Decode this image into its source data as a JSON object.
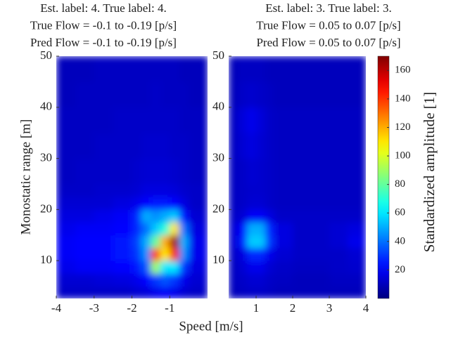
{
  "chart_data": {
    "type": "heatmap",
    "xlabel": "Speed [m/s]",
    "ylabel": "Monostatic range [m]",
    "colormap": "jet",
    "clim": [
      0,
      170
    ],
    "colorbar_label": "Standardized amplitude [1]",
    "colorbar_ticks": [
      20,
      40,
      60,
      80,
      100,
      120,
      140,
      160
    ],
    "panels": [
      {
        "title_lines": [
          "Est. label: 4. True label: 4.",
          "True Flow = -0.1 to -0.19 [p/s]",
          "Pred Flow = -0.1 to -0.19 [p/s]"
        ],
        "xlim": [
          -4,
          0
        ],
        "ylim": [
          2.6,
          50
        ],
        "xticks": [
          -4,
          -3,
          -2,
          -1
        ],
        "yticks": [
          10,
          20,
          30,
          40,
          50
        ],
        "x_edges": [
          -4,
          -3.5,
          -3,
          -2.5,
          -2,
          -1.75,
          -1.5,
          -1.25,
          -1,
          -0.75,
          -0.5,
          0
        ],
        "y_edges": [
          2.6,
          5,
          7.5,
          10,
          12.5,
          15,
          17.5,
          20,
          22.5,
          25,
          30,
          35,
          40,
          45,
          50
        ],
        "values": [
          [
            12,
            12,
            12,
            12,
            14,
            15,
            18,
            20,
            18,
            14,
            12
          ],
          [
            14,
            14,
            15,
            16,
            18,
            22,
            30,
            35,
            30,
            18,
            14
          ],
          [
            18,
            20,
            20,
            22,
            25,
            35,
            90,
            60,
            60,
            30,
            16
          ],
          [
            20,
            22,
            22,
            25,
            30,
            45,
            140,
            110,
            150,
            45,
            18
          ],
          [
            20,
            22,
            22,
            25,
            32,
            50,
            80,
            120,
            165,
            50,
            18
          ],
          [
            18,
            20,
            20,
            22,
            28,
            40,
            55,
            70,
            110,
            40,
            16
          ],
          [
            16,
            16,
            18,
            20,
            28,
            50,
            45,
            50,
            55,
            25,
            14
          ],
          [
            14,
            14,
            14,
            16,
            18,
            22,
            25,
            25,
            22,
            16,
            12
          ],
          [
            12,
            12,
            13,
            13,
            14,
            16,
            16,
            16,
            15,
            13,
            12
          ],
          [
            11,
            12,
            12,
            12,
            13,
            14,
            14,
            14,
            13,
            12,
            11
          ],
          [
            11,
            11,
            12,
            12,
            12,
            13,
            13,
            13,
            12,
            12,
            11
          ],
          [
            11,
            11,
            11,
            12,
            12,
            12,
            12,
            12,
            12,
            11,
            11
          ],
          [
            10,
            11,
            11,
            11,
            11,
            11,
            12,
            11,
            11,
            11,
            10
          ],
          [
            10,
            10,
            11,
            11,
            11,
            11,
            11,
            11,
            11,
            10,
            10
          ]
        ]
      },
      {
        "title_lines": [
          "Est. label: 3. True label: 3.",
          "True Flow = 0.05 to 0.07 [p/s]",
          "Pred Flow = 0.05 to 0.07 [p/s]"
        ],
        "xlim": [
          0.25,
          4
        ],
        "ylim": [
          2.6,
          50
        ],
        "xticks": [
          1,
          2,
          3,
          4
        ],
        "yticks": [
          10,
          20,
          30,
          40,
          50
        ],
        "x_edges": [
          0.25,
          0.5,
          0.75,
          1,
          1.25,
          1.5,
          2,
          2.5,
          3,
          3.5,
          4
        ],
        "y_edges": [
          2.6,
          5,
          7.5,
          10,
          12.5,
          15,
          17.5,
          20,
          22.5,
          25,
          30,
          35,
          40,
          45,
          50
        ],
        "values": [
          [
            10,
            11,
            12,
            12,
            11,
            10,
            10,
            10,
            10,
            10
          ],
          [
            11,
            12,
            14,
            14,
            12,
            11,
            10,
            10,
            11,
            11
          ],
          [
            11,
            14,
            18,
            18,
            14,
            12,
            11,
            11,
            12,
            13
          ],
          [
            12,
            16,
            28,
            28,
            18,
            14,
            12,
            12,
            12,
            14
          ],
          [
            14,
            25,
            55,
            55,
            30,
            16,
            12,
            12,
            14,
            18
          ],
          [
            14,
            22,
            50,
            50,
            28,
            16,
            12,
            12,
            14,
            16
          ],
          [
            12,
            14,
            20,
            20,
            16,
            12,
            12,
            12,
            12,
            12
          ],
          [
            11,
            12,
            14,
            14,
            12,
            11,
            11,
            11,
            11,
            11
          ],
          [
            11,
            12,
            13,
            13,
            12,
            11,
            11,
            11,
            11,
            11
          ],
          [
            11,
            12,
            14,
            13,
            12,
            11,
            11,
            11,
            11,
            11
          ],
          [
            11,
            14,
            16,
            14,
            12,
            11,
            11,
            11,
            11,
            11
          ],
          [
            11,
            15,
            18,
            15,
            12,
            11,
            11,
            11,
            11,
            11
          ],
          [
            10,
            12,
            13,
            12,
            11,
            10,
            10,
            10,
            10,
            10
          ],
          [
            10,
            11,
            11,
            11,
            10,
            10,
            10,
            10,
            10,
            10
          ]
        ]
      }
    ]
  }
}
